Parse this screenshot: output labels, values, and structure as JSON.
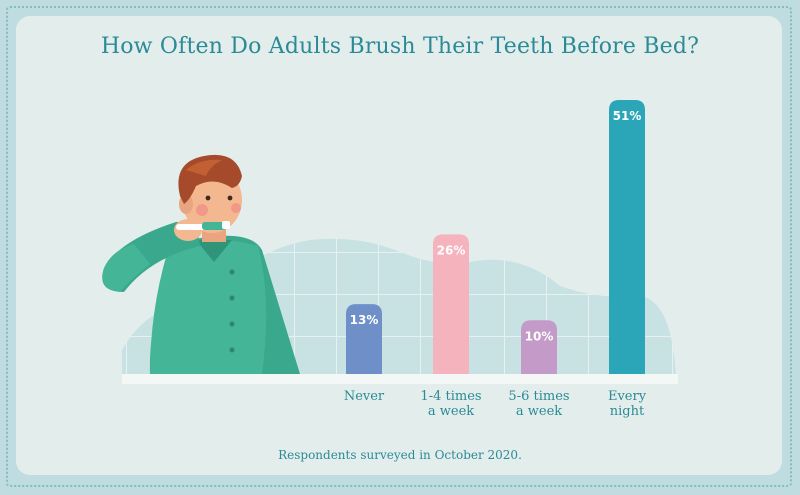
{
  "chart_data": {
    "type": "bar",
    "title": "How Often Do Adults Brush Their Teeth Before Bed?",
    "categories": [
      [
        "Never"
      ],
      [
        "1-4 times",
        "a week"
      ],
      [
        "5-6 times",
        "a week"
      ],
      [
        "Every",
        "night"
      ]
    ],
    "values": [
      13,
      26,
      10,
      51
    ],
    "value_labels": [
      "13%",
      "26%",
      "10%",
      "51%"
    ],
    "colors": [
      "#6f8fc8",
      "#f5b3bd",
      "#c49ac8",
      "#2ba6b8"
    ],
    "ylim": [
      0,
      51
    ],
    "grid": false,
    "legend": "none"
  },
  "footnote": "Respondents surveyed in October 2020.",
  "illustration": {
    "subject": "man-brushing-teeth-icon"
  }
}
